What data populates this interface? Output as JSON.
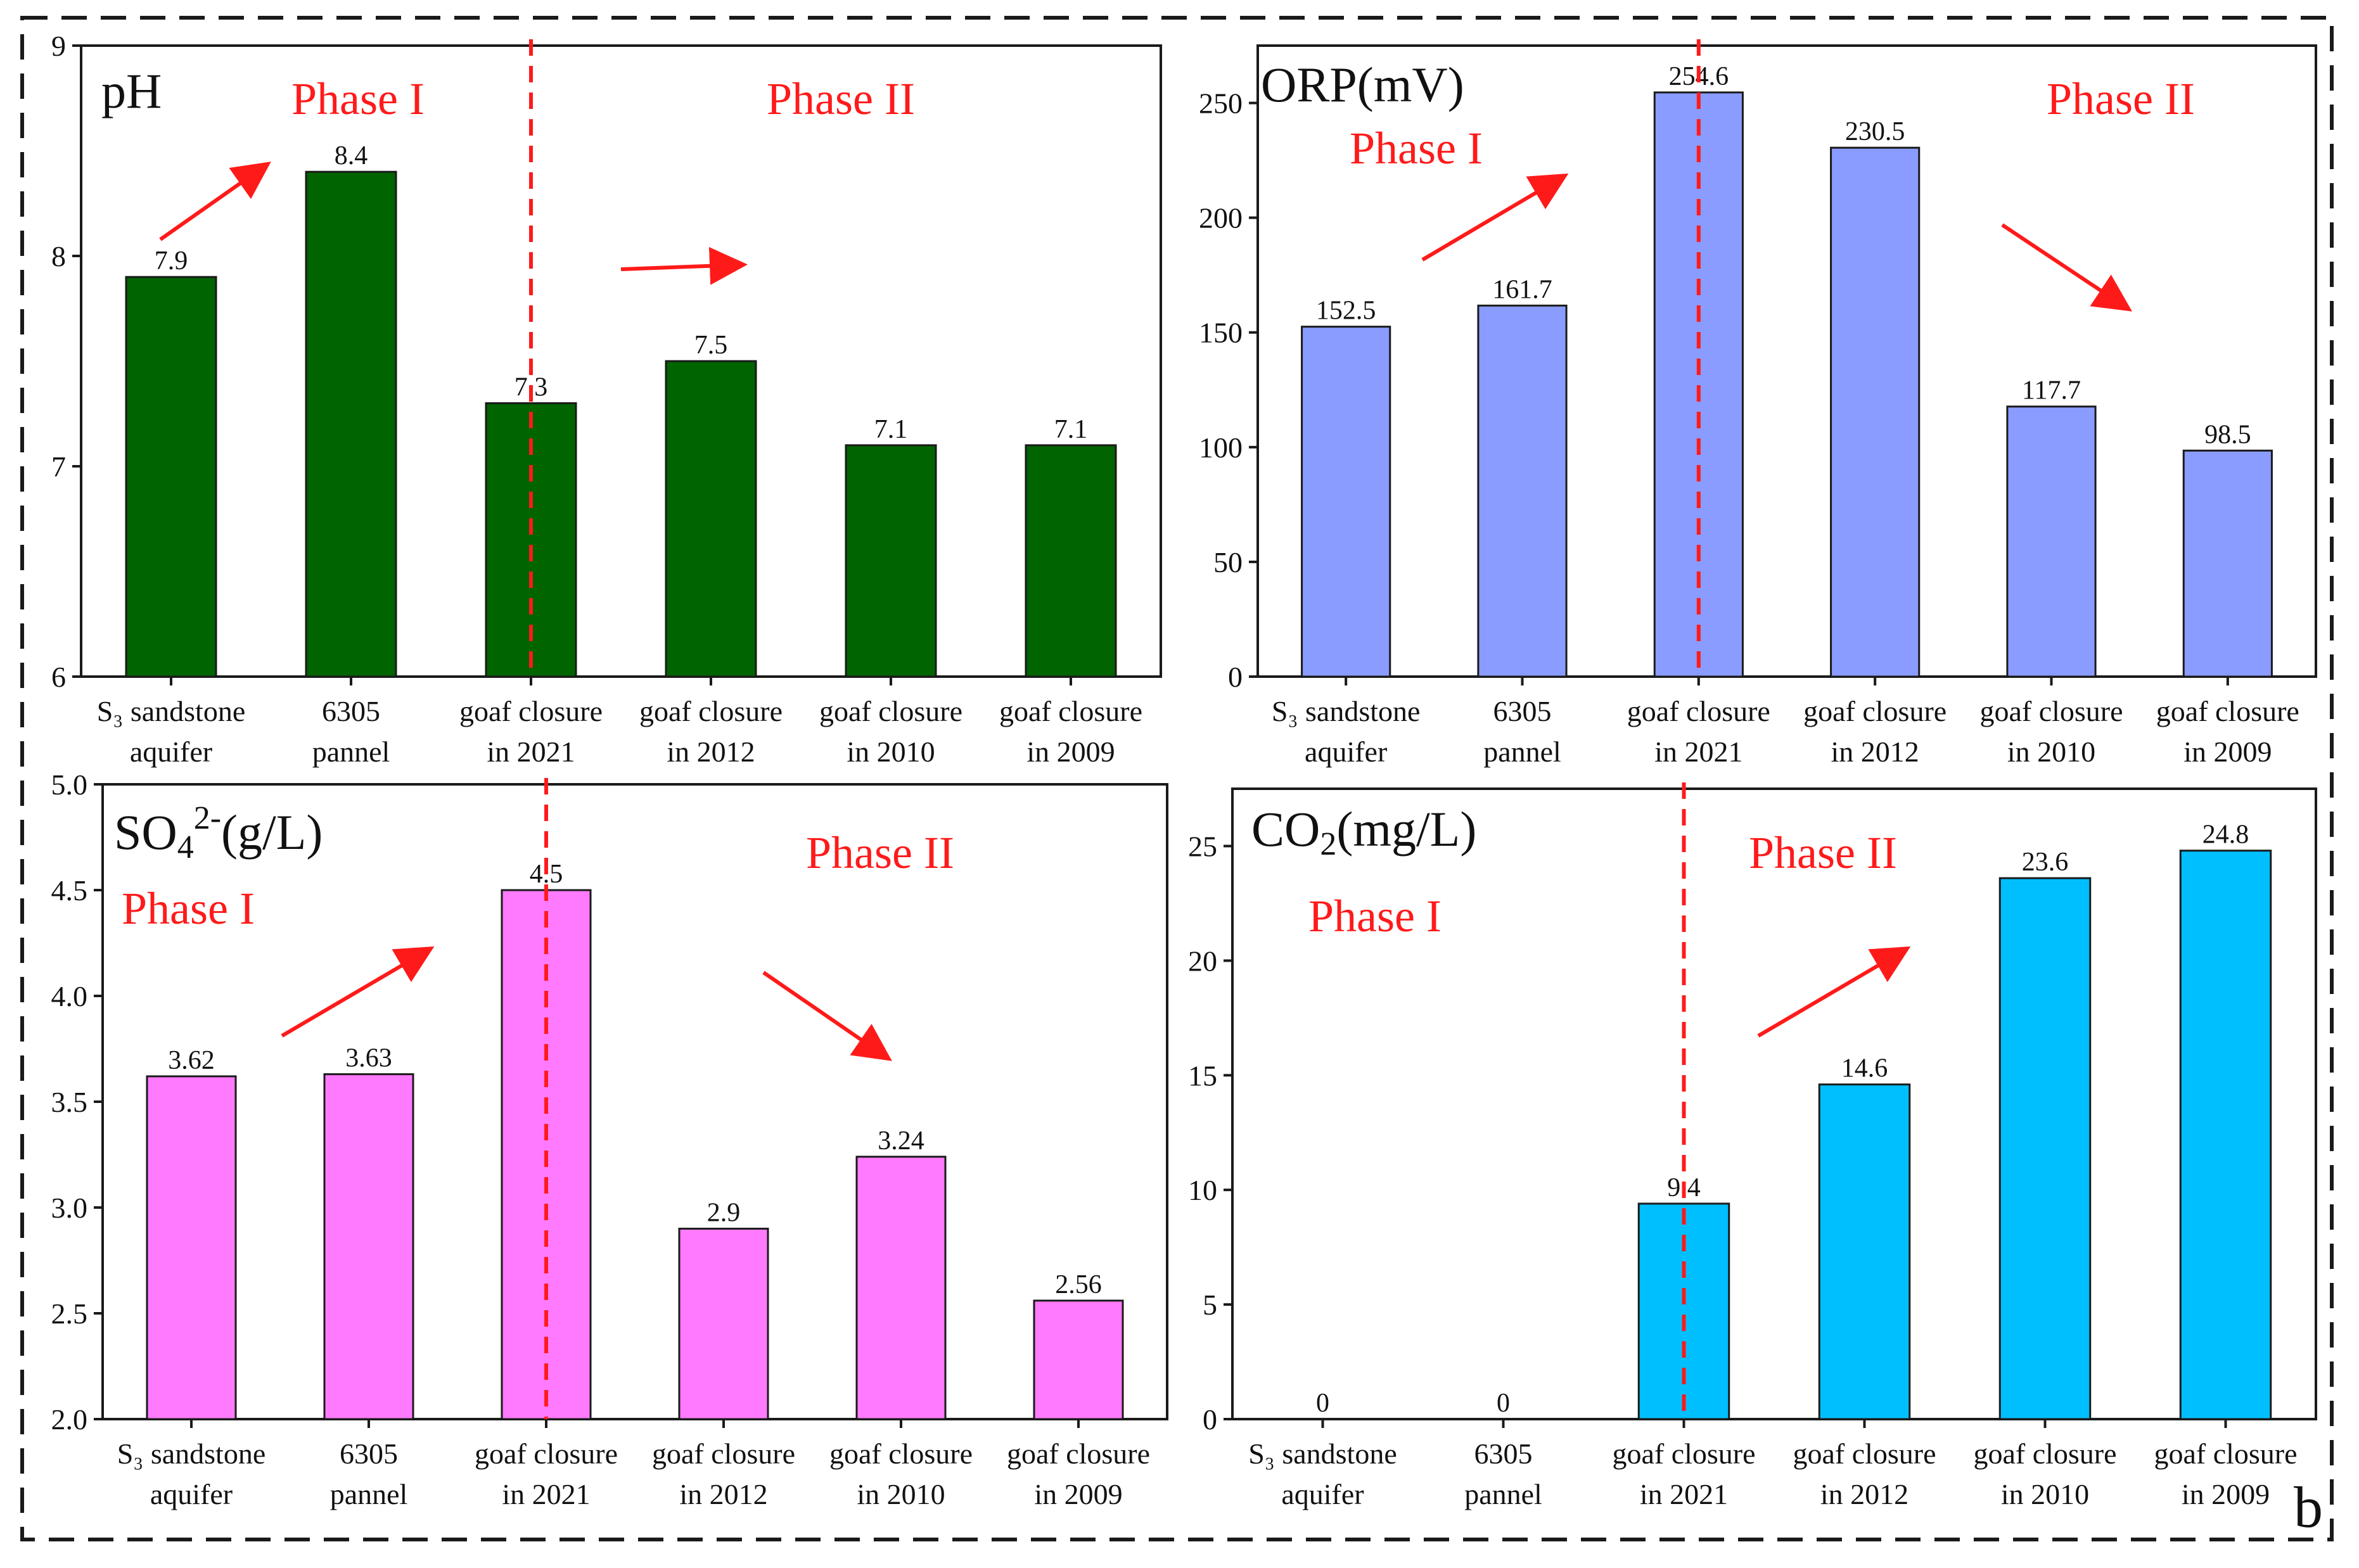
{
  "figure_label": "b",
  "phase_labels": {
    "phase1": "Phase I",
    "phase2": "Phase II"
  },
  "colors": {
    "ph": "#006400",
    "orp": "#8a9cff",
    "so4": "#ff7aff",
    "co2": "#00bfff",
    "phase": "#ff1a1a",
    "stroke": "#1a1a1a"
  },
  "chart_data": [
    {
      "id": "ph",
      "type": "bar",
      "title": "pH",
      "categories": [
        [
          "S₃ sandstone",
          "aquifer"
        ],
        [
          "6305",
          "pannel"
        ],
        [
          "goaf closure",
          "in 2021"
        ],
        [
          "goaf closure",
          "in 2012"
        ],
        [
          "goaf closure",
          "in 2010"
        ],
        [
          "goaf closure",
          "in 2009"
        ]
      ],
      "values": [
        7.9,
        8.4,
        7.3,
        7.5,
        7.1,
        7.1
      ],
      "value_labels": [
        "7.9",
        "8.4",
        "7.3",
        "7.5",
        "7.1",
        "7.1"
      ],
      "ylim": [
        6,
        9
      ],
      "yticks": [
        6,
        7,
        8,
        9
      ],
      "ytick_labels": [
        "6",
        "7",
        "8",
        "9"
      ],
      "divider_after_index": 2
    },
    {
      "id": "orp",
      "type": "bar",
      "title": "ORP(mV)",
      "categories": [
        [
          "S₃ sandstone",
          "aquifer"
        ],
        [
          "6305",
          "pannel"
        ],
        [
          "goaf closure",
          "in 2021"
        ],
        [
          "goaf closure",
          "in 2012"
        ],
        [
          "goaf closure",
          "in 2010"
        ],
        [
          "goaf closure",
          "in 2009"
        ]
      ],
      "values": [
        152.5,
        161.7,
        254.6,
        230.5,
        117.7,
        98.5
      ],
      "value_labels": [
        "152.5",
        "161.7",
        "254.6",
        "230.5",
        "117.7",
        "98.5"
      ],
      "ylim": [
        0,
        275
      ],
      "yticks": [
        0,
        50,
        100,
        150,
        200,
        250
      ],
      "ytick_labels": [
        "0",
        "50",
        "100",
        "150",
        "200",
        "250"
      ],
      "divider_after_index": 2
    },
    {
      "id": "so4",
      "type": "bar",
      "title": "SO₄²⁻(g/L)",
      "categories": [
        [
          "S₃ sandstone",
          "aquifer"
        ],
        [
          "6305",
          "pannel"
        ],
        [
          "goaf closure",
          "in 2021"
        ],
        [
          "goaf closure",
          "in 2012"
        ],
        [
          "goaf closure",
          "in 2010"
        ],
        [
          "goaf closure",
          "in 2009"
        ]
      ],
      "values": [
        3.62,
        3.63,
        4.5,
        2.9,
        3.24,
        2.56
      ],
      "value_labels": [
        "3.62",
        "3.63",
        "4.5",
        "2.9",
        "3.24",
        "2.56"
      ],
      "ylim": [
        2.0,
        5.0
      ],
      "yticks": [
        2.0,
        2.5,
        3.0,
        3.5,
        4.0,
        4.5,
        5.0
      ],
      "ytick_labels": [
        "2.0",
        "2.5",
        "3.0",
        "3.5",
        "4.0",
        "4.5",
        "5.0"
      ],
      "divider_after_index": 2
    },
    {
      "id": "co2",
      "type": "bar",
      "title": "CO₂(mg/L)",
      "categories": [
        [
          "S₃ sandstone",
          "aquifer"
        ],
        [
          "6305",
          "pannel"
        ],
        [
          "goaf closure",
          "in 2021"
        ],
        [
          "goaf closure",
          "in 2012"
        ],
        [
          "goaf closure",
          "in 2010"
        ],
        [
          "goaf closure",
          "in 2009"
        ]
      ],
      "values": [
        0,
        0,
        9.4,
        14.6,
        23.6,
        24.8
      ],
      "value_labels": [
        "0",
        "0",
        "9.4",
        "14.6",
        "23.6",
        "24.8"
      ],
      "ylim": [
        0,
        27.5
      ],
      "yticks": [
        0,
        5,
        10,
        15,
        20,
        25
      ],
      "ytick_labels": [
        "0",
        "5",
        "10",
        "15",
        "20",
        "25"
      ],
      "divider_after_index": 2
    }
  ]
}
